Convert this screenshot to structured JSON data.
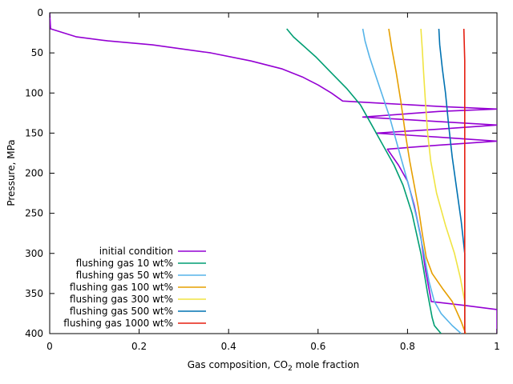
{
  "chart_data": {
    "type": "line",
    "title": "",
    "xlabel": "Gas composition, CO",
    "xlabel_sub": "2",
    "xlabel_tail": " mole fraction",
    "ylabel": "Pressure, MPa",
    "xlim": [
      0,
      1
    ],
    "ylim": [
      0,
      400
    ],
    "y_inverted": true,
    "grid": false,
    "legend_position": "bottom-left",
    "xticks": [
      0,
      0.2,
      0.4,
      0.6,
      0.8,
      1
    ],
    "xtick_labels": [
      "0",
      "0.2",
      "0.4",
      "0.6",
      "0.8",
      "1"
    ],
    "yticks": [
      0,
      50,
      100,
      150,
      200,
      250,
      300,
      350,
      400
    ],
    "ytick_labels": [
      "0",
      "50",
      "100",
      "150",
      "200",
      "250",
      "300",
      "350",
      "400"
    ],
    "series": [
      {
        "name": "initial condition",
        "color": "#9400d3",
        "points": [
          [
            0.0,
            0
          ],
          [
            0.002,
            20
          ],
          [
            0.06,
            30
          ],
          [
            0.13,
            35
          ],
          [
            0.23,
            40
          ],
          [
            0.36,
            50
          ],
          [
            0.45,
            60
          ],
          [
            0.52,
            70
          ],
          [
            0.565,
            80
          ],
          [
            0.6,
            90
          ],
          [
            0.63,
            100
          ],
          [
            0.655,
            110
          ],
          [
            0.75,
            113
          ],
          [
            0.88,
            117
          ],
          [
            1.0,
            120
          ],
          [
            0.87,
            123
          ],
          [
            0.7,
            130
          ],
          [
            0.85,
            135
          ],
          [
            1.0,
            140
          ],
          [
            0.87,
            145
          ],
          [
            0.73,
            150
          ],
          [
            0.87,
            155
          ],
          [
            1.0,
            160
          ],
          [
            0.87,
            165
          ],
          [
            0.755,
            170
          ],
          [
            0.78,
            190
          ],
          [
            0.8,
            210
          ],
          [
            0.815,
            240
          ],
          [
            0.83,
            280
          ],
          [
            0.84,
            320
          ],
          [
            0.85,
            350
          ],
          [
            0.853,
            360
          ],
          [
            0.93,
            365
          ],
          [
            1.0,
            370
          ],
          [
            1.0,
            400
          ]
        ]
      },
      {
        "name": "flushing gas 10 wt%",
        "color": "#009e73",
        "points": [
          [
            0.53,
            20
          ],
          [
            0.545,
            30
          ],
          [
            0.565,
            40
          ],
          [
            0.595,
            55
          ],
          [
            0.63,
            75
          ],
          [
            0.665,
            95
          ],
          [
            0.695,
            115
          ],
          [
            0.72,
            140
          ],
          [
            0.745,
            165
          ],
          [
            0.77,
            190
          ],
          [
            0.79,
            215
          ],
          [
            0.81,
            250
          ],
          [
            0.83,
            300
          ],
          [
            0.845,
            350
          ],
          [
            0.855,
            380
          ],
          [
            0.86,
            390
          ],
          [
            0.875,
            400
          ]
        ]
      },
      {
        "name": "flushing gas 50 wt%",
        "color": "#56b4e9",
        "points": [
          [
            0.7,
            20
          ],
          [
            0.705,
            35
          ],
          [
            0.715,
            55
          ],
          [
            0.73,
            80
          ],
          [
            0.745,
            105
          ],
          [
            0.76,
            130
          ],
          [
            0.775,
            160
          ],
          [
            0.79,
            190
          ],
          [
            0.805,
            220
          ],
          [
            0.82,
            255
          ],
          [
            0.835,
            295
          ],
          [
            0.848,
            335
          ],
          [
            0.86,
            360
          ],
          [
            0.875,
            375
          ],
          [
            0.9,
            390
          ],
          [
            0.92,
            400
          ]
        ]
      },
      {
        "name": "flushing gas 100 wt%",
        "color": "#e69f00",
        "points": [
          [
            0.758,
            20
          ],
          [
            0.765,
            45
          ],
          [
            0.775,
            75
          ],
          [
            0.785,
            110
          ],
          [
            0.795,
            150
          ],
          [
            0.805,
            185
          ],
          [
            0.815,
            215
          ],
          [
            0.825,
            245
          ],
          [
            0.833,
            275
          ],
          [
            0.842,
            305
          ],
          [
            0.855,
            325
          ],
          [
            0.88,
            345
          ],
          [
            0.9,
            360
          ],
          [
            0.92,
            385
          ],
          [
            0.93,
            400
          ]
        ]
      },
      {
        "name": "flushing gas 300 wt%",
        "color": "#f0e442",
        "points": [
          [
            0.83,
            20
          ],
          [
            0.833,
            45
          ],
          [
            0.836,
            75
          ],
          [
            0.84,
            110
          ],
          [
            0.845,
            150
          ],
          [
            0.852,
            185
          ],
          [
            0.865,
            225
          ],
          [
            0.885,
            265
          ],
          [
            0.905,
            300
          ],
          [
            0.918,
            330
          ],
          [
            0.928,
            360
          ],
          [
            0.928,
            400
          ]
        ]
      },
      {
        "name": "flushing gas 500 wt%",
        "color": "#0072b2",
        "points": [
          [
            0.87,
            20
          ],
          [
            0.872,
            40
          ],
          [
            0.878,
            70
          ],
          [
            0.885,
            100
          ],
          [
            0.892,
            140
          ],
          [
            0.9,
            180
          ],
          [
            0.91,
            220
          ],
          [
            0.92,
            260
          ],
          [
            0.928,
            300
          ],
          [
            0.928,
            400
          ]
        ]
      },
      {
        "name": "flushing gas 1000 wt%",
        "color": "#e51e10",
        "points": [
          [
            0.926,
            20
          ],
          [
            0.928,
            60
          ],
          [
            0.928,
            150
          ],
          [
            0.928,
            260
          ],
          [
            0.928,
            400
          ]
        ]
      }
    ]
  }
}
